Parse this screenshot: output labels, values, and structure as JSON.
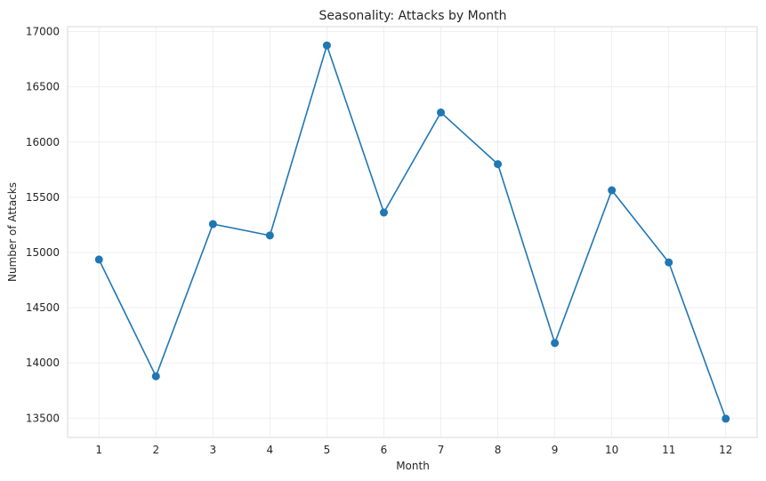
{
  "chart_data": {
    "type": "line",
    "title": "Seasonality: Attacks by Month",
    "xlabel": "Month",
    "ylabel": "Number of Attacks",
    "x": [
      1,
      2,
      3,
      4,
      5,
      6,
      7,
      8,
      9,
      10,
      11,
      12
    ],
    "series": [
      {
        "values": [
          14936,
          13879,
          15257,
          15154,
          16875,
          15362,
          16268,
          15800,
          14180,
          15563,
          14910,
          13495
        ]
      }
    ],
    "xticks": [
      "1",
      "2",
      "3",
      "4",
      "5",
      "6",
      "7",
      "8",
      "9",
      "10",
      "11",
      "12"
    ],
    "yticks": [
      "13500",
      "14000",
      "14500",
      "15000",
      "15500",
      "16000",
      "16500",
      "17000"
    ],
    "ylim": [
      13325,
      17045
    ],
    "xlim": [
      0.45,
      12.55
    ],
    "grid": true,
    "marker": "circle",
    "line_color": "#1f77b4"
  }
}
